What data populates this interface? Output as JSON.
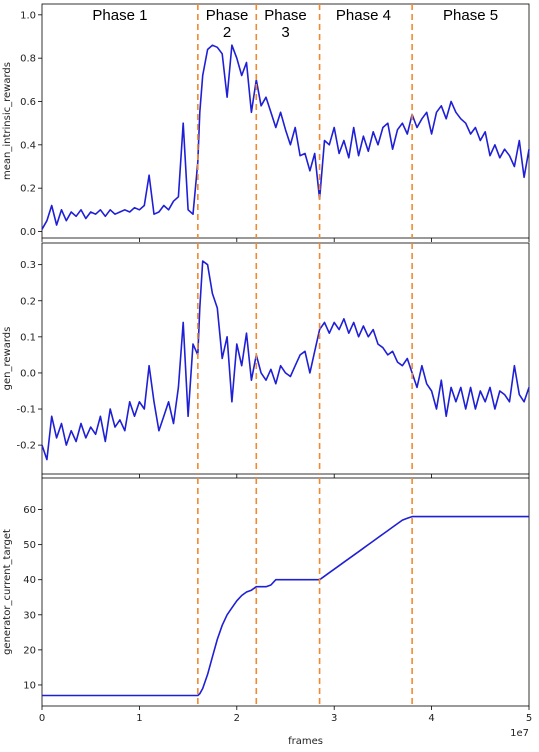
{
  "chart_data": [
    {
      "type": "line",
      "ylabel": "mean_intrinsic_rewards",
      "xlabel": "",
      "xlim": [
        0,
        5
      ],
      "ylim": [
        -0.03,
        1.05
      ],
      "yticks": [
        0.0,
        0.2,
        0.4,
        0.6,
        0.8,
        1.0
      ],
      "grid": false,
      "phase_labels": [
        {
          "lines": [
            "Phase 1"
          ],
          "x": 0.8
        },
        {
          "lines": [
            "Phase",
            "2"
          ],
          "x": 1.9
        },
        {
          "lines": [
            "Phase",
            "3"
          ],
          "x": 2.5
        },
        {
          "lines": [
            "Phase 4"
          ],
          "x": 3.3
        },
        {
          "lines": [
            "Phase 5"
          ],
          "x": 4.4
        }
      ],
      "series": [
        {
          "color": "#1f1fd6",
          "x": [
            0.0,
            0.05,
            0.1,
            0.15,
            0.2,
            0.25,
            0.3,
            0.35,
            0.4,
            0.45,
            0.5,
            0.55,
            0.6,
            0.65,
            0.7,
            0.75,
            0.8,
            0.85,
            0.9,
            0.95,
            1.0,
            1.05,
            1.1,
            1.15,
            1.2,
            1.25,
            1.3,
            1.35,
            1.4,
            1.45,
            1.5,
            1.55,
            1.6,
            1.62,
            1.65,
            1.7,
            1.75,
            1.8,
            1.85,
            1.9,
            1.95,
            2.0,
            2.05,
            2.1,
            2.15,
            2.2,
            2.25,
            2.3,
            2.35,
            2.4,
            2.45,
            2.5,
            2.55,
            2.6,
            2.65,
            2.7,
            2.75,
            2.8,
            2.85,
            2.9,
            2.95,
            3.0,
            3.05,
            3.1,
            3.15,
            3.2,
            3.25,
            3.3,
            3.35,
            3.4,
            3.45,
            3.5,
            3.55,
            3.6,
            3.65,
            3.7,
            3.75,
            3.8,
            3.85,
            3.9,
            3.95,
            4.0,
            4.05,
            4.1,
            4.15,
            4.2,
            4.25,
            4.3,
            4.35,
            4.4,
            4.45,
            4.5,
            4.55,
            4.6,
            4.65,
            4.7,
            4.75,
            4.8,
            4.85,
            4.9,
            4.95,
            5.0
          ],
          "y": [
            0.01,
            0.05,
            0.12,
            0.03,
            0.1,
            0.05,
            0.09,
            0.07,
            0.1,
            0.06,
            0.09,
            0.08,
            0.1,
            0.07,
            0.1,
            0.08,
            0.09,
            0.1,
            0.09,
            0.11,
            0.1,
            0.12,
            0.26,
            0.08,
            0.09,
            0.12,
            0.1,
            0.14,
            0.16,
            0.5,
            0.1,
            0.08,
            0.32,
            0.55,
            0.72,
            0.84,
            0.86,
            0.85,
            0.82,
            0.62,
            0.86,
            0.8,
            0.72,
            0.78,
            0.55,
            0.7,
            0.58,
            0.62,
            0.55,
            0.48,
            0.55,
            0.47,
            0.4,
            0.48,
            0.35,
            0.36,
            0.28,
            0.36,
            0.15,
            0.42,
            0.4,
            0.48,
            0.36,
            0.42,
            0.34,
            0.48,
            0.35,
            0.44,
            0.37,
            0.46,
            0.4,
            0.48,
            0.5,
            0.38,
            0.47,
            0.5,
            0.45,
            0.54,
            0.48,
            0.52,
            0.55,
            0.45,
            0.55,
            0.58,
            0.52,
            0.6,
            0.55,
            0.52,
            0.5,
            0.45,
            0.48,
            0.42,
            0.46,
            0.35,
            0.4,
            0.34,
            0.38,
            0.35,
            0.3,
            0.42,
            0.25,
            0.38
          ]
        }
      ],
      "vlines": {
        "x": [
          1.6,
          2.2,
          2.85,
          3.8
        ],
        "color": "#f08a30"
      }
    },
    {
      "type": "line",
      "ylabel": "gen_rewards",
      "xlabel": "",
      "xlim": [
        0,
        5
      ],
      "ylim": [
        -0.28,
        0.36
      ],
      "yticks": [
        -0.2,
        -0.1,
        0.0,
        0.1,
        0.2,
        0.3
      ],
      "grid": false,
      "series": [
        {
          "color": "#1f1fd6",
          "x": [
            0.0,
            0.05,
            0.1,
            0.15,
            0.2,
            0.25,
            0.3,
            0.35,
            0.4,
            0.45,
            0.5,
            0.55,
            0.6,
            0.65,
            0.7,
            0.75,
            0.8,
            0.85,
            0.9,
            0.95,
            1.0,
            1.05,
            1.1,
            1.15,
            1.2,
            1.25,
            1.3,
            1.35,
            1.4,
            1.45,
            1.5,
            1.55,
            1.6,
            1.62,
            1.65,
            1.7,
            1.75,
            1.8,
            1.85,
            1.9,
            1.95,
            2.0,
            2.05,
            2.1,
            2.15,
            2.2,
            2.25,
            2.3,
            2.35,
            2.4,
            2.45,
            2.5,
            2.55,
            2.6,
            2.65,
            2.7,
            2.75,
            2.8,
            2.85,
            2.9,
            2.95,
            3.0,
            3.05,
            3.1,
            3.15,
            3.2,
            3.25,
            3.3,
            3.35,
            3.4,
            3.45,
            3.5,
            3.55,
            3.6,
            3.65,
            3.7,
            3.75,
            3.8,
            3.85,
            3.9,
            3.95,
            4.0,
            4.05,
            4.1,
            4.15,
            4.2,
            4.25,
            4.3,
            4.35,
            4.4,
            4.45,
            4.5,
            4.55,
            4.6,
            4.65,
            4.7,
            4.75,
            4.8,
            4.85,
            4.9,
            4.95,
            5.0
          ],
          "y": [
            -0.2,
            -0.24,
            -0.12,
            -0.18,
            -0.14,
            -0.2,
            -0.16,
            -0.19,
            -0.14,
            -0.18,
            -0.15,
            -0.17,
            -0.12,
            -0.19,
            -0.1,
            -0.15,
            -0.13,
            -0.16,
            -0.08,
            -0.12,
            -0.08,
            -0.1,
            0.02,
            -0.08,
            -0.16,
            -0.12,
            -0.08,
            -0.14,
            -0.04,
            0.14,
            -0.12,
            0.08,
            0.05,
            0.18,
            0.31,
            0.3,
            0.22,
            0.18,
            0.04,
            0.1,
            -0.08,
            0.08,
            0.02,
            0.11,
            -0.02,
            0.05,
            0.0,
            -0.02,
            0.01,
            -0.03,
            0.02,
            0.0,
            -0.01,
            0.02,
            0.05,
            0.06,
            0.0,
            0.06,
            0.12,
            0.14,
            0.11,
            0.14,
            0.12,
            0.15,
            0.11,
            0.14,
            0.1,
            0.13,
            0.1,
            0.12,
            0.08,
            0.07,
            0.05,
            0.06,
            0.03,
            0.02,
            0.04,
            0.0,
            -0.04,
            0.02,
            -0.03,
            -0.05,
            -0.1,
            -0.02,
            -0.12,
            -0.04,
            -0.08,
            -0.04,
            -0.1,
            -0.04,
            -0.1,
            -0.05,
            -0.08,
            -0.04,
            -0.1,
            -0.05,
            -0.06,
            -0.08,
            0.02,
            -0.06,
            -0.08,
            -0.04
          ]
        }
      ],
      "vlines": {
        "x": [
          1.6,
          2.2,
          2.85,
          3.8
        ],
        "color": "#f08a30"
      }
    },
    {
      "type": "line",
      "ylabel": "generator_current_target",
      "xlabel": "frames",
      "x_offset_label": "1e7",
      "xlim": [
        0,
        5
      ],
      "ylim": [
        4,
        69
      ],
      "yticks": [
        10,
        20,
        30,
        40,
        50,
        60
      ],
      "xticks": [
        0,
        1,
        2,
        3,
        4,
        5
      ],
      "grid": false,
      "series": [
        {
          "color": "#1f1fd6",
          "x": [
            0.0,
            1.6,
            1.62,
            1.65,
            1.7,
            1.75,
            1.8,
            1.85,
            1.9,
            1.95,
            2.0,
            2.05,
            2.1,
            2.15,
            2.2,
            2.25,
            2.3,
            2.35,
            2.4,
            2.45,
            2.5,
            2.55,
            2.6,
            2.65,
            2.7,
            2.75,
            2.8,
            2.85,
            2.9,
            2.95,
            3.0,
            3.05,
            3.1,
            3.15,
            3.2,
            3.25,
            3.3,
            3.35,
            3.4,
            3.45,
            3.5,
            3.55,
            3.6,
            3.65,
            3.7,
            3.75,
            3.8,
            3.85,
            3.9,
            4.0,
            5.0
          ],
          "y": [
            7,
            7,
            7.5,
            9,
            13,
            18,
            23,
            27,
            30,
            32,
            34,
            35.5,
            36.5,
            37,
            38,
            38,
            38,
            38.5,
            40,
            40,
            40,
            40,
            40,
            40,
            40,
            40,
            40,
            40,
            41,
            42,
            43,
            44,
            45,
            46,
            47,
            48,
            49,
            50,
            51,
            52,
            53,
            54,
            55,
            56,
            57,
            57.5,
            58,
            58,
            58,
            58,
            58
          ]
        }
      ],
      "vlines": {
        "x": [
          1.6,
          2.2,
          2.85,
          3.8
        ],
        "color": "#f08a30"
      }
    }
  ]
}
